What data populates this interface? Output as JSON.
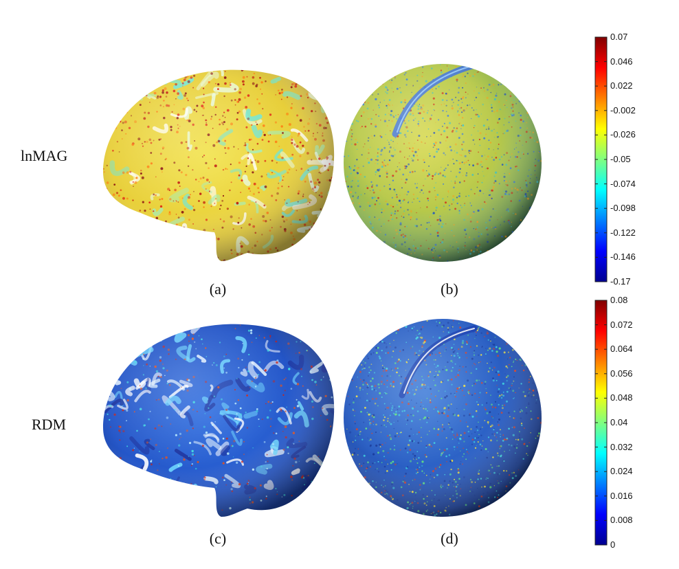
{
  "rows": [
    {
      "label": "lnMAG"
    },
    {
      "label": "RDM"
    }
  ],
  "panels": [
    {
      "label": "(a)",
      "kind": "brain",
      "row": 0
    },
    {
      "label": "(b)",
      "kind": "sphere",
      "row": 0
    },
    {
      "label": "(c)",
      "kind": "brain",
      "row": 1
    },
    {
      "label": "(d)",
      "kind": "sphere",
      "row": 1
    }
  ],
  "colorbars": [
    {
      "row": 0,
      "ticks": [
        "0.07",
        "0.046",
        "0.022",
        "-0.002",
        "-0.026",
        "-0.05",
        "-0.074",
        "-0.098",
        "-0.122",
        "-0.146",
        "-0.17"
      ],
      "range": [
        -0.17,
        0.07
      ],
      "colormap": "jet"
    },
    {
      "row": 1,
      "ticks": [
        "0.08",
        "0.072",
        "0.064",
        "0.056",
        "0.048",
        "0.04",
        "0.032",
        "0.024",
        "0.016",
        "0.008",
        "0"
      ],
      "range": [
        0,
        0.08
      ],
      "colormap": "jet"
    }
  ],
  "colors": {
    "jet_dark_red": "#800000",
    "jet_red": "#ff0000",
    "jet_yellow": "#ffff00",
    "jet_cyan": "#00ffff",
    "jet_blue": "#0000ff",
    "jet_dark_blue": "#000080"
  }
}
